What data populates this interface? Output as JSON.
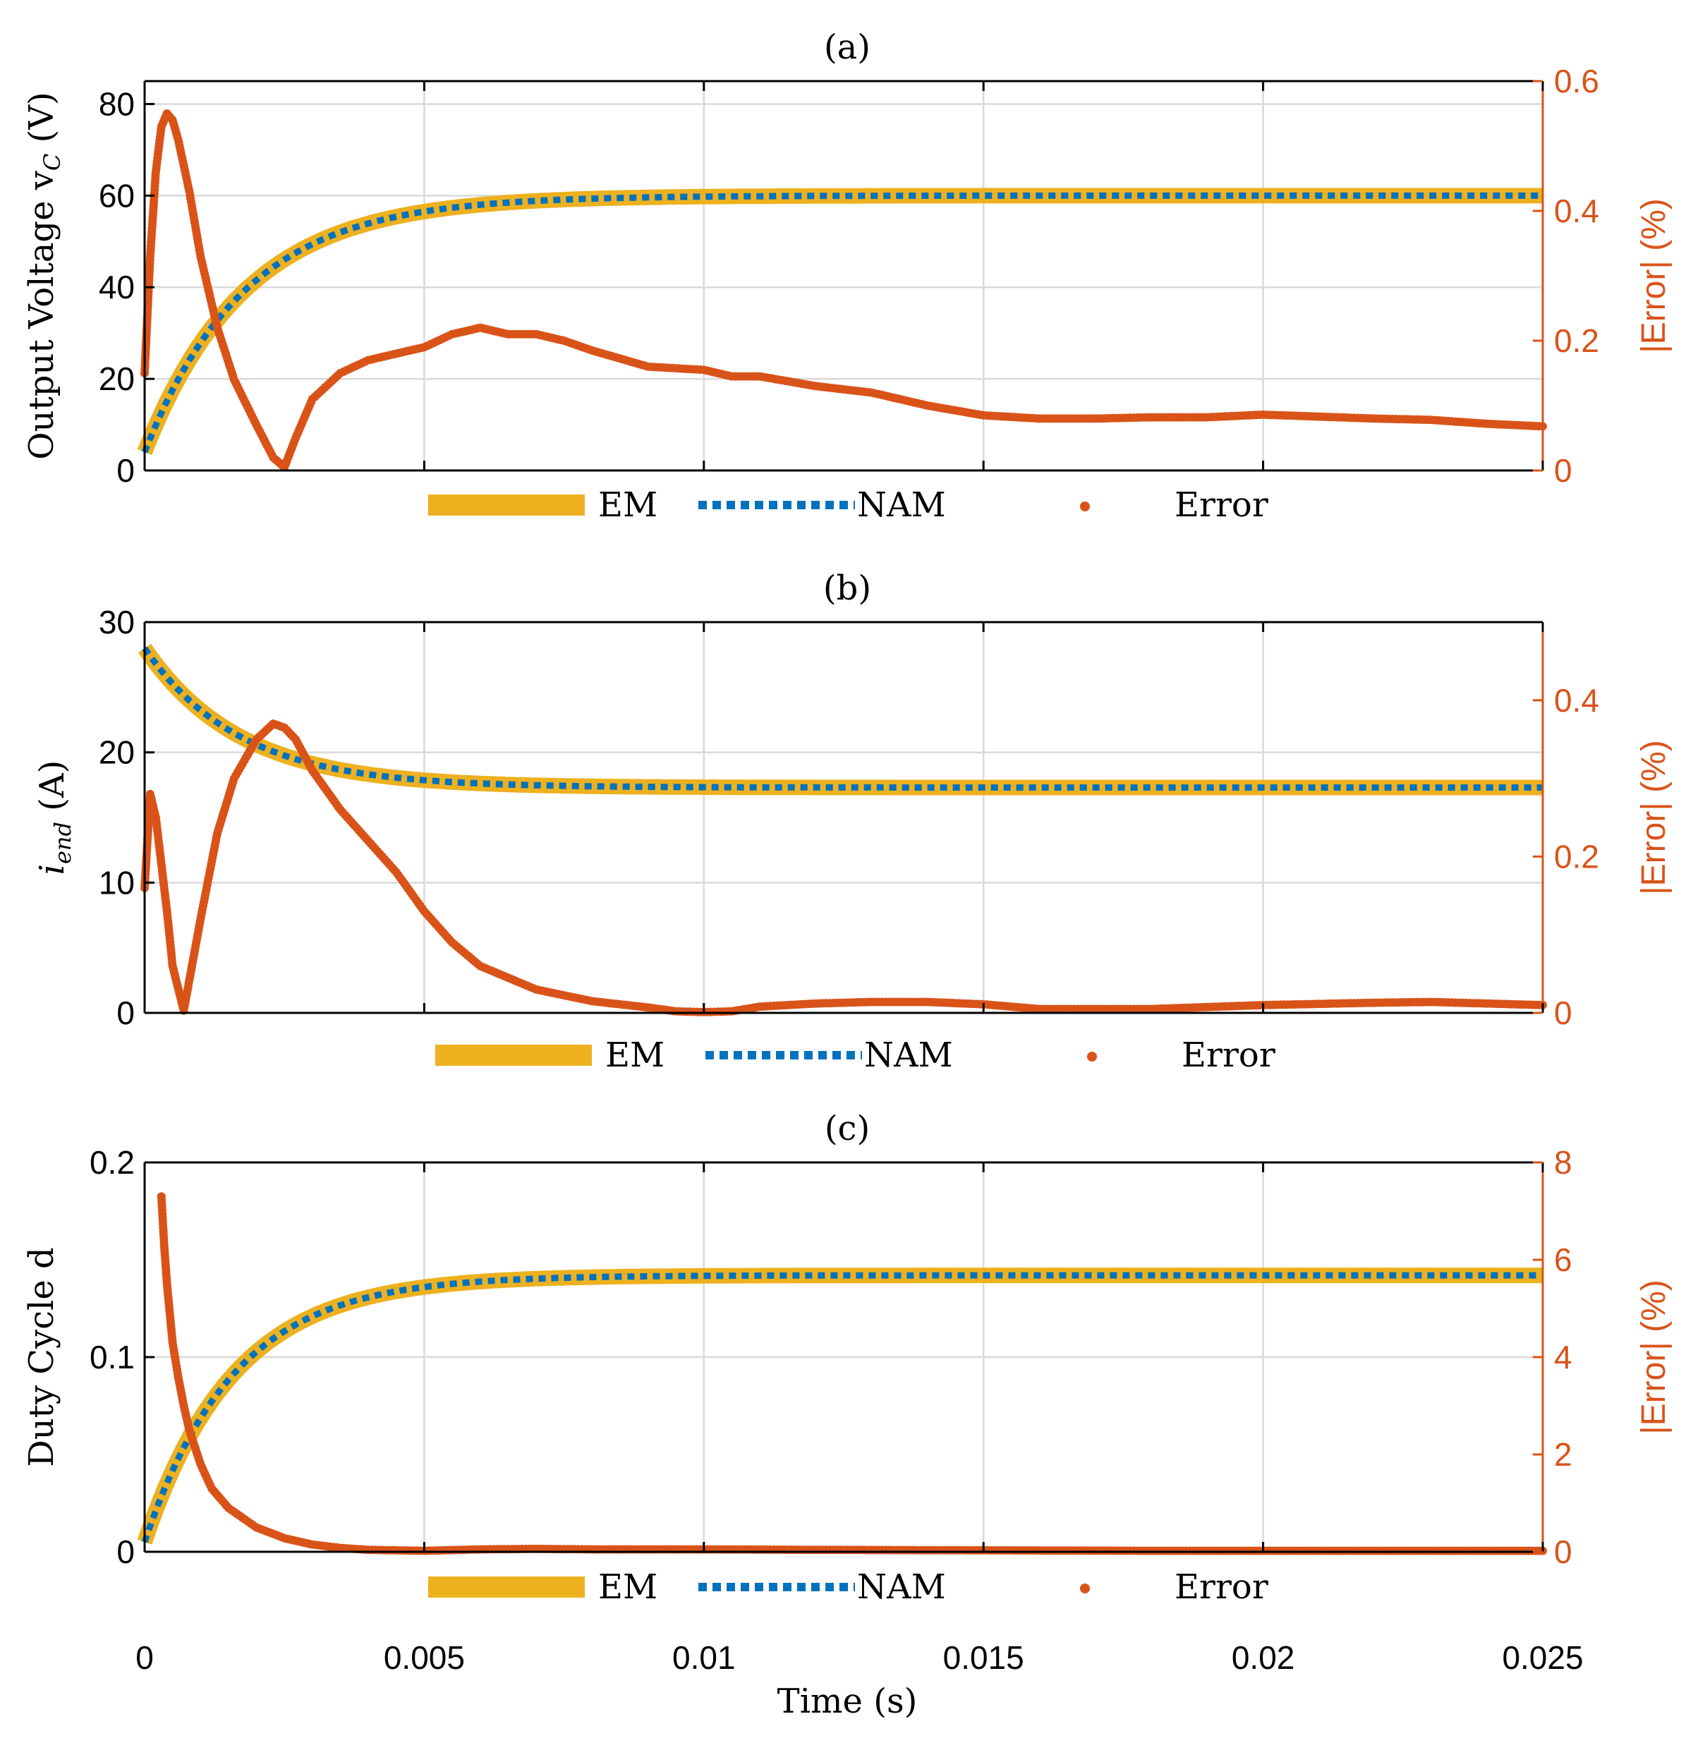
{
  "colors": {
    "em": "#EDB120",
    "nam": "#0072BD",
    "error": "#D95319",
    "grid": "#d9d9d9",
    "axis": "#000000"
  },
  "xaxis": {
    "label": "Time (s)",
    "range": [
      0,
      0.025
    ],
    "ticks": [
      0,
      0.005,
      0.01,
      0.015,
      0.02,
      0.025
    ],
    "tick_labels": [
      "0",
      "0.005",
      "0.01",
      "0.015",
      "0.02",
      "0.025"
    ]
  },
  "chart_data": [
    {
      "type": "line",
      "title": "(a)",
      "ylabel": "Output Voltage v",
      "ylabel_sub": "C",
      "ylabel_tail": " (V)",
      "ylim": [
        0,
        85
      ],
      "yticks": [
        0,
        20,
        40,
        60,
        80
      ],
      "ytick_labels": [
        "0",
        "20",
        "40",
        "60",
        "80"
      ],
      "y2label": "|Error| (%)",
      "y2lim": [
        0,
        0.6
      ],
      "y2ticks": [
        0,
        0.2,
        0.4,
        0.6
      ],
      "y2tick_labels": [
        "0",
        "0.2",
        "0.4",
        "0.6"
      ],
      "legend": [
        "EM",
        "NAM",
        "Error"
      ],
      "model": {
        "kind": "rise",
        "y0": 4,
        "yf": 60,
        "tau": 0.0018
      },
      "error": {
        "x": [
          0,
          0.0001,
          0.0002,
          0.0003,
          0.0004,
          0.0005,
          0.0006,
          0.0008,
          0.001,
          0.0013,
          0.0016,
          0.002,
          0.0023,
          0.0025,
          0.0027,
          0.003,
          0.0035,
          0.004,
          0.0045,
          0.005,
          0.0055,
          0.006,
          0.0065,
          0.007,
          0.0075,
          0.008,
          0.009,
          0.01,
          0.0105,
          0.011,
          0.012,
          0.013,
          0.014,
          0.015,
          0.016,
          0.017,
          0.018,
          0.019,
          0.02,
          0.021,
          0.022,
          0.023,
          0.024,
          0.025
        ],
        "y": [
          0.15,
          0.33,
          0.46,
          0.53,
          0.55,
          0.54,
          0.51,
          0.43,
          0.33,
          0.22,
          0.14,
          0.07,
          0.02,
          0.005,
          0.05,
          0.11,
          0.15,
          0.17,
          0.18,
          0.19,
          0.21,
          0.22,
          0.21,
          0.21,
          0.2,
          0.185,
          0.16,
          0.155,
          0.145,
          0.145,
          0.13,
          0.12,
          0.1,
          0.085,
          0.08,
          0.08,
          0.082,
          0.082,
          0.086,
          0.083,
          0.08,
          0.078,
          0.072,
          0.068
        ]
      }
    },
    {
      "type": "line",
      "title": "(b)",
      "ylabel": "i",
      "ylabel_sub": "end",
      "ylabel_tail": " (A)",
      "ylim": [
        0,
        30
      ],
      "yticks": [
        0,
        10,
        20,
        30
      ],
      "ytick_labels": [
        "0",
        "10",
        "20",
        "30"
      ],
      "y2label": "|Error| (%)",
      "y2lim": [
        0,
        0.5
      ],
      "y2ticks": [
        0,
        0.2,
        0.4
      ],
      "y2tick_labels": [
        "0",
        "0.2",
        "0.4"
      ],
      "legend": [
        "EM",
        "NAM",
        "Error"
      ],
      "model": {
        "kind": "decay",
        "y0": 28,
        "yf": 17.3,
        "tau": 0.0017
      },
      "error": {
        "x": [
          0,
          0.0001,
          0.0002,
          0.0003,
          0.0004,
          0.0005,
          0.0007,
          0.001,
          0.0013,
          0.0016,
          0.002,
          0.0023,
          0.0025,
          0.0027,
          0.003,
          0.0035,
          0.004,
          0.0045,
          0.005,
          0.0055,
          0.006,
          0.0065,
          0.007,
          0.008,
          0.009,
          0.0095,
          0.01,
          0.0105,
          0.011,
          0.012,
          0.013,
          0.014,
          0.015,
          0.016,
          0.018,
          0.02,
          0.022,
          0.023,
          0.024,
          0.025
        ],
        "y": [
          0.16,
          0.28,
          0.25,
          0.19,
          0.13,
          0.06,
          0.003,
          0.12,
          0.23,
          0.3,
          0.35,
          0.37,
          0.365,
          0.35,
          0.31,
          0.26,
          0.22,
          0.18,
          0.13,
          0.09,
          0.06,
          0.045,
          0.03,
          0.015,
          0.007,
          0.002,
          0.001,
          0.002,
          0.008,
          0.012,
          0.014,
          0.014,
          0.011,
          0.005,
          0.005,
          0.01,
          0.013,
          0.014,
          0.012,
          0.01
        ]
      }
    },
    {
      "type": "line",
      "title": "(c)",
      "ylabel": "Duty Cycle d",
      "ylabel_sub": "",
      "ylabel_tail": "",
      "ylim": [
        0,
        0.2
      ],
      "yticks": [
        0,
        0.1,
        0.2
      ],
      "ytick_labels": [
        "0",
        "0.1",
        "0.2"
      ],
      "y2label": "|Error| (%)",
      "y2lim": [
        0,
        8
      ],
      "y2ticks": [
        0,
        2,
        4,
        6,
        8
      ],
      "y2tick_labels": [
        "0",
        "2",
        "4",
        "6",
        "8"
      ],
      "legend": [
        "EM",
        "NAM",
        "Error"
      ],
      "model": {
        "kind": "rise",
        "y0": 0.005,
        "yf": 0.142,
        "tau": 0.0016
      },
      "error": {
        "x": [
          0.0003,
          0.00035,
          0.0004,
          0.00045,
          0.0005,
          0.0006,
          0.0007,
          0.0008,
          0.001,
          0.0012,
          0.0015,
          0.002,
          0.0025,
          0.003,
          0.0035,
          0.004,
          0.005,
          0.006,
          0.007,
          0.008,
          0.01,
          0.012,
          0.015,
          0.018,
          0.02,
          0.022,
          0.025
        ],
        "y": [
          7.3,
          6.3,
          5.5,
          4.9,
          4.3,
          3.6,
          3.0,
          2.5,
          1.8,
          1.3,
          0.9,
          0.5,
          0.28,
          0.15,
          0.08,
          0.04,
          0.02,
          0.05,
          0.06,
          0.05,
          0.05,
          0.04,
          0.03,
          0.02,
          0.02,
          0.02,
          0.02
        ]
      }
    }
  ]
}
